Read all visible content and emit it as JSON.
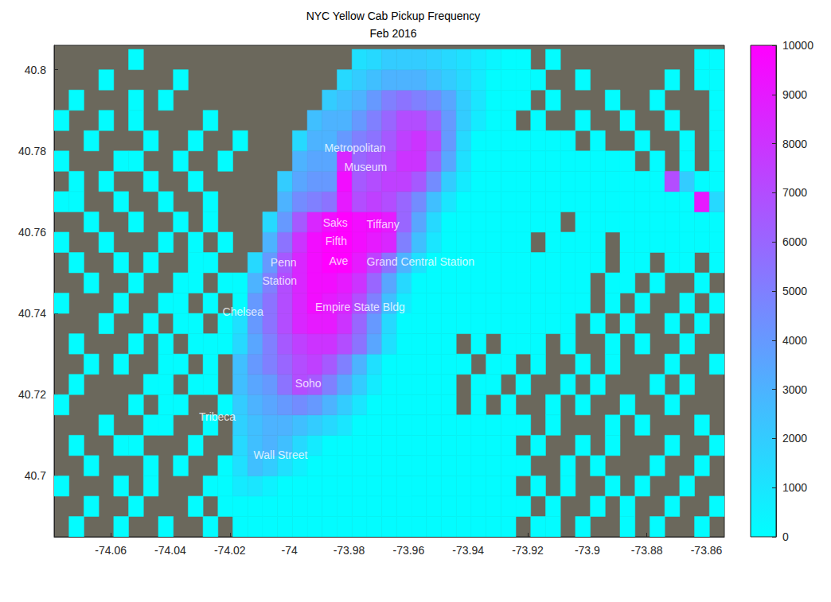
{
  "chart_data": {
    "type": "heatmap",
    "title": "NYC Yellow Cab Pickup Frequency",
    "subtitle": "Feb 2016",
    "xlim": [
      -74.079,
      -73.854
    ],
    "xticks": [
      -74.06,
      -74.04,
      -74.02,
      -74,
      -73.98,
      -73.96,
      -73.94,
      -73.92,
      -73.9,
      -73.88,
      -73.86
    ],
    "ylim": [
      40.685,
      40.806
    ],
    "yticks": [
      40.7,
      40.72,
      40.74,
      40.76,
      40.78,
      40.8
    ],
    "grid": false,
    "colorbar": {
      "range": [
        0,
        10000
      ],
      "ticks": [
        0,
        1000,
        2000,
        3000,
        4000,
        5000,
        6000,
        7000,
        8000,
        9000,
        10000
      ],
      "colors": [
        "#00ffff",
        "#ff00ff"
      ]
    },
    "annotations": [
      {
        "text": "Metropolitan",
        "x": -73.978,
        "y": 40.7807
      },
      {
        "text": "Museum",
        "x": -73.9744,
        "y": 40.776
      },
      {
        "text": "Saks",
        "x": -73.9846,
        "y": 40.7623
      },
      {
        "text": "Tiffany",
        "x": -73.9686,
        "y": 40.7619
      },
      {
        "text": "Fifth",
        "x": -73.9843,
        "y": 40.7578
      },
      {
        "text": "Ave",
        "x": -73.9835,
        "y": 40.753
      },
      {
        "text": "Grand Central Station",
        "x": -73.956,
        "y": 40.7527
      },
      {
        "text": "Penn",
        "x": -74.002,
        "y": 40.7525
      },
      {
        "text": "Station",
        "x": -74.0033,
        "y": 40.748
      },
      {
        "text": "Chelsea",
        "x": -74.0156,
        "y": 40.7405
      },
      {
        "text": "Empire State Bldg",
        "x": -73.9763,
        "y": 40.7415
      },
      {
        "text": "Soho",
        "x": -73.9937,
        "y": 40.7228
      },
      {
        "text": "Tribeca",
        "x": -74.0242,
        "y": 40.7145
      },
      {
        "text": "Wall Street",
        "x": -74.003,
        "y": 40.7051
      }
    ],
    "cell_x": [
      -74.0765,
      -74.0715,
      -74.0665,
      -74.0615,
      -74.0565,
      -74.0515,
      -74.0465,
      -74.0415,
      -74.0365,
      -74.0315,
      -74.0265,
      -74.0215,
      -74.0165,
      -74.0115,
      -74.0065,
      -74.0015,
      -73.9965,
      -73.9915,
      -73.9865,
      -73.9815,
      -73.9765,
      -73.9715,
      -73.9665,
      -73.9615,
      -73.9565,
      -73.9515,
      -73.9465,
      -73.9415,
      -73.9365,
      -73.9315,
      -73.9265,
      -73.9215,
      -73.9165,
      -73.9115,
      -73.9065,
      -73.9015,
      -73.8965,
      -73.8915,
      -73.8865,
      -73.8815,
      -73.8765,
      -73.8715,
      -73.8665,
      -73.8615,
      -73.8565
    ],
    "cell_y": [
      40.6875,
      40.6925,
      40.6975,
      40.7025,
      40.7075,
      40.7125,
      40.7175,
      40.7225,
      40.7275,
      40.7325,
      40.7375,
      40.7425,
      40.7475,
      40.7525,
      40.7575,
      40.7625,
      40.7675,
      40.7725,
      40.7775,
      40.7825,
      40.7875,
      40.7925,
      40.7975,
      40.8025
    ],
    "cells": [
      [
        null,
        100,
        null,
        null,
        100,
        null,
        null,
        100,
        null,
        null,
        100,
        null,
        100,
        100,
        100,
        100,
        100,
        100,
        100,
        100,
        100,
        100,
        100,
        100,
        100,
        100,
        100,
        100,
        100,
        100,
        100,
        null,
        100,
        100,
        null,
        100,
        null,
        null,
        100,
        null,
        100,
        null,
        null,
        100,
        null
      ],
      [
        null,
        null,
        100,
        null,
        null,
        100,
        null,
        null,
        null,
        100,
        null,
        100,
        100,
        100,
        100,
        100,
        100,
        100,
        100,
        100,
        100,
        100,
        100,
        100,
        100,
        100,
        100,
        100,
        100,
        100,
        100,
        100,
        null,
        100,
        null,
        null,
        100,
        null,
        100,
        null,
        null,
        100,
        null,
        null,
        100
      ],
      [
        100,
        null,
        null,
        null,
        100,
        null,
        100,
        null,
        null,
        null,
        100,
        100,
        800,
        1000,
        500,
        100,
        100,
        100,
        100,
        100,
        100,
        100,
        100,
        100,
        100,
        100,
        100,
        100,
        100,
        100,
        100,
        null,
        100,
        null,
        100,
        null,
        null,
        100,
        null,
        100,
        null,
        null,
        100,
        null,
        null
      ],
      [
        null,
        null,
        100,
        null,
        null,
        null,
        100,
        null,
        100,
        null,
        null,
        100,
        1200,
        2500,
        2000,
        1200,
        600,
        100,
        100,
        100,
        100,
        100,
        100,
        100,
        100,
        100,
        100,
        100,
        100,
        100,
        100,
        100,
        null,
        null,
        100,
        null,
        100,
        null,
        null,
        null,
        100,
        null,
        null,
        100,
        null
      ],
      [
        null,
        100,
        null,
        null,
        100,
        100,
        null,
        null,
        null,
        100,
        null,
        null,
        1500,
        2500,
        3000,
        2500,
        1500,
        800,
        100,
        100,
        100,
        100,
        100,
        100,
        100,
        100,
        100,
        100,
        100,
        100,
        100,
        null,
        100,
        null,
        null,
        100,
        null,
        100,
        null,
        null,
        null,
        100,
        null,
        null,
        100
      ],
      [
        null,
        null,
        null,
        100,
        null,
        null,
        100,
        100,
        null,
        null,
        100,
        null,
        1800,
        2500,
        3000,
        3000,
        2500,
        2000,
        1500,
        1000,
        100,
        100,
        100,
        100,
        100,
        100,
        100,
        100,
        100,
        100,
        100,
        100,
        null,
        100,
        null,
        null,
        null,
        100,
        null,
        100,
        null,
        null,
        null,
        100,
        null
      ],
      [
        100,
        null,
        null,
        null,
        null,
        100,
        null,
        100,
        100,
        null,
        null,
        100,
        2000,
        3000,
        3500,
        4000,
        4500,
        4000,
        3000,
        2000,
        1000,
        100,
        100,
        100,
        100,
        100,
        100,
        null,
        100,
        null,
        100,
        null,
        null,
        100,
        null,
        100,
        null,
        null,
        100,
        null,
        null,
        100,
        null,
        null,
        null
      ],
      [
        null,
        100,
        null,
        null,
        null,
        null,
        100,
        100,
        null,
        100,
        100,
        null,
        2500,
        3500,
        4000,
        5500,
        7000,
        6500,
        5000,
        3500,
        2000,
        800,
        100,
        100,
        100,
        100,
        100,
        null,
        100,
        100,
        null,
        100,
        null,
        null,
        100,
        null,
        100,
        null,
        null,
        null,
        100,
        null,
        100,
        null,
        null
      ],
      [
        null,
        null,
        100,
        null,
        100,
        null,
        null,
        100,
        100,
        null,
        100,
        null,
        2500,
        4000,
        5000,
        6000,
        7000,
        7500,
        6500,
        5000,
        3000,
        1200,
        100,
        100,
        100,
        100,
        100,
        100,
        null,
        100,
        100,
        null,
        100,
        null,
        null,
        100,
        null,
        100,
        null,
        null,
        null,
        100,
        null,
        null,
        100
      ],
      [
        null,
        100,
        null,
        null,
        null,
        100,
        null,
        100,
        null,
        100,
        100,
        100,
        1500,
        3500,
        5000,
        6500,
        7500,
        8000,
        8000,
        7000,
        5500,
        3500,
        1200,
        100,
        100,
        100,
        100,
        null,
        100,
        null,
        100,
        100,
        100,
        null,
        100,
        null,
        null,
        100,
        null,
        100,
        null,
        null,
        100,
        null,
        null
      ],
      [
        null,
        null,
        null,
        100,
        null,
        null,
        100,
        null,
        100,
        100,
        null,
        100,
        1200,
        4000,
        5500,
        7000,
        8500,
        9000,
        9000,
        8000,
        6000,
        4000,
        1500,
        100,
        100,
        100,
        100,
        100,
        100,
        100,
        100,
        100,
        100,
        100,
        100,
        null,
        100,
        null,
        100,
        null,
        null,
        100,
        null,
        100,
        null
      ],
      [
        100,
        null,
        null,
        null,
        100,
        null,
        null,
        100,
        100,
        null,
        100,
        null,
        100,
        4000,
        5500,
        7000,
        8500,
        9500,
        9000,
        8500,
        7000,
        5000,
        2500,
        800,
        100,
        100,
        100,
        100,
        100,
        100,
        100,
        100,
        100,
        100,
        100,
        100,
        null,
        100,
        null,
        100,
        null,
        null,
        100,
        null,
        100
      ],
      [
        null,
        null,
        100,
        null,
        null,
        100,
        null,
        null,
        100,
        100,
        null,
        100,
        100,
        3000,
        5000,
        7000,
        8500,
        9500,
        9500,
        9000,
        8000,
        6000,
        3500,
        1500,
        100,
        100,
        100,
        100,
        100,
        100,
        100,
        100,
        100,
        100,
        100,
        100,
        null,
        100,
        100,
        null,
        100,
        null,
        null,
        100,
        null
      ],
      [
        null,
        100,
        null,
        null,
        100,
        null,
        100,
        null,
        null,
        100,
        100,
        null,
        null,
        1500,
        4000,
        6500,
        8500,
        9500,
        10000,
        10000,
        9000,
        7500,
        5500,
        3000,
        1200,
        100,
        100,
        100,
        100,
        100,
        100,
        100,
        100,
        100,
        100,
        100,
        100,
        null,
        100,
        100,
        null,
        100,
        100,
        null,
        100
      ],
      [
        100,
        null,
        null,
        100,
        null,
        null,
        null,
        100,
        null,
        100,
        null,
        100,
        null,
        null,
        3000,
        5500,
        8000,
        9500,
        10000,
        10000,
        9500,
        9000,
        8500,
        5000,
        2500,
        1000,
        100,
        100,
        100,
        100,
        100,
        100,
        null,
        100,
        100,
        100,
        100,
        null,
        100,
        100,
        100,
        100,
        100,
        100,
        100
      ],
      [
        null,
        null,
        100,
        null,
        null,
        100,
        null,
        null,
        100,
        null,
        100,
        null,
        null,
        null,
        1500,
        4000,
        6500,
        8500,
        9500,
        10000,
        9500,
        9500,
        9000,
        6000,
        3500,
        1500,
        100,
        100,
        100,
        100,
        100,
        100,
        100,
        100,
        null,
        100,
        100,
        100,
        100,
        100,
        100,
        100,
        100,
        100,
        100
      ],
      [
        100,
        100,
        null,
        null,
        100,
        null,
        null,
        100,
        null,
        null,
        100,
        null,
        null,
        null,
        null,
        3000,
        4500,
        5000,
        5500,
        9000,
        7000,
        7500,
        7000,
        6000,
        4500,
        2500,
        1000,
        100,
        100,
        100,
        100,
        100,
        100,
        100,
        100,
        100,
        100,
        100,
        100,
        100,
        100,
        100,
        100,
        9000,
        1500
      ],
      [
        null,
        100,
        null,
        100,
        null,
        null,
        100,
        null,
        null,
        100,
        null,
        null,
        null,
        null,
        null,
        2000,
        3500,
        4000,
        4000,
        9500,
        6500,
        7000,
        7500,
        7500,
        6500,
        4500,
        2000,
        800,
        100,
        100,
        100,
        100,
        100,
        100,
        100,
        100,
        100,
        100,
        100,
        100,
        100,
        7000,
        2000,
        100,
        100
      ],
      [
        100,
        null,
        null,
        null,
        100,
        100,
        null,
        null,
        100,
        null,
        null,
        100,
        null,
        null,
        null,
        null,
        3000,
        3500,
        3500,
        8500,
        6000,
        6500,
        7000,
        8000,
        8000,
        6000,
        3500,
        1200,
        100,
        100,
        100,
        100,
        100,
        100,
        100,
        100,
        100,
        100,
        100,
        null,
        100,
        null,
        100,
        null,
        100
      ],
      [
        null,
        null,
        100,
        null,
        null,
        null,
        100,
        null,
        null,
        100,
        null,
        null,
        100,
        null,
        null,
        null,
        1500,
        3000,
        3000,
        4000,
        5000,
        5500,
        6500,
        7500,
        8000,
        7000,
        4000,
        1500,
        100,
        100,
        100,
        100,
        100,
        100,
        100,
        null,
        100,
        null,
        null,
        100,
        null,
        null,
        100,
        null,
        100
      ],
      [
        100,
        null,
        null,
        100,
        null,
        100,
        null,
        null,
        null,
        null,
        100,
        null,
        null,
        null,
        null,
        null,
        null,
        2500,
        3000,
        3000,
        4000,
        5000,
        6000,
        7000,
        7000,
        6000,
        4000,
        2000,
        800,
        100,
        100,
        null,
        100,
        null,
        null,
        100,
        null,
        null,
        100,
        null,
        null,
        100,
        null,
        null,
        100
      ],
      [
        null,
        100,
        null,
        null,
        null,
        100,
        null,
        100,
        null,
        null,
        null,
        null,
        null,
        null,
        null,
        null,
        null,
        null,
        2000,
        2500,
        3000,
        4000,
        5000,
        5500,
        5000,
        4500,
        3500,
        2000,
        1000,
        100,
        100,
        100,
        null,
        100,
        null,
        null,
        null,
        100,
        null,
        null,
        100,
        null,
        null,
        null,
        100
      ],
      [
        null,
        null,
        null,
        100,
        null,
        null,
        null,
        null,
        100,
        null,
        null,
        null,
        null,
        null,
        null,
        null,
        null,
        null,
        null,
        1500,
        2000,
        2500,
        3000,
        3000,
        3000,
        2500,
        2000,
        1500,
        800,
        100,
        100,
        100,
        100,
        null,
        null,
        100,
        null,
        null,
        null,
        null,
        null,
        100,
        null,
        100,
        100
      ],
      [
        null,
        null,
        null,
        null,
        null,
        100,
        null,
        null,
        null,
        null,
        null,
        null,
        null,
        null,
        null,
        null,
        null,
        null,
        null,
        null,
        1200,
        1500,
        2000,
        2000,
        2000,
        1800,
        1500,
        1200,
        800,
        400,
        100,
        100,
        null,
        100,
        null,
        null,
        null,
        null,
        null,
        null,
        null,
        null,
        null,
        100,
        100
      ]
    ]
  }
}
